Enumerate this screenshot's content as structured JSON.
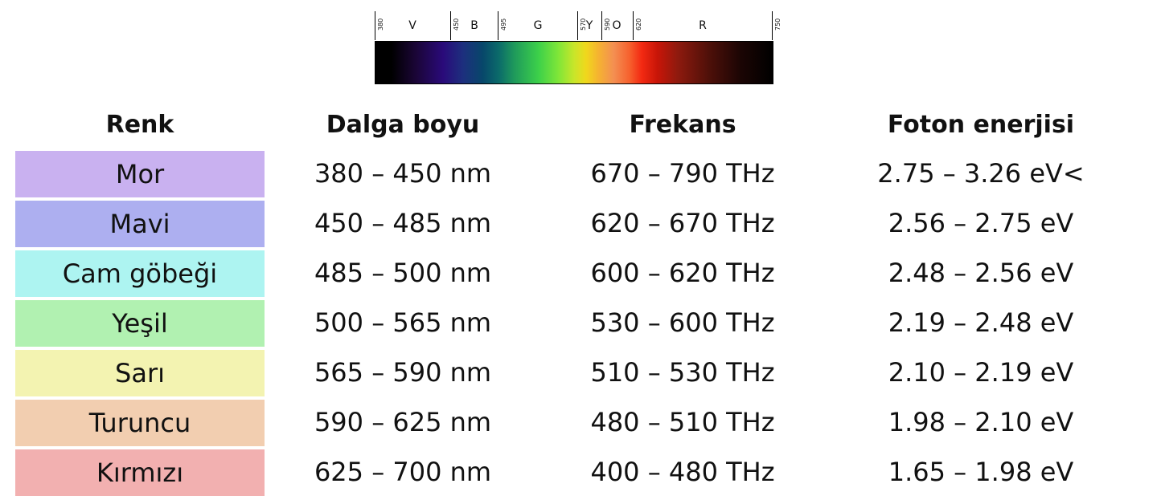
{
  "spectrum": {
    "ticks": [
      {
        "value": "380",
        "pos": 0.0
      },
      {
        "value": "450",
        "pos": 0.19
      },
      {
        "value": "495",
        "pos": 0.31
      },
      {
        "value": "570",
        "pos": 0.51
      },
      {
        "value": "590",
        "pos": 0.57
      },
      {
        "value": "620",
        "pos": 0.65
      },
      {
        "value": "750",
        "pos": 1.0
      }
    ],
    "bands": [
      {
        "label": "V",
        "pos": 0.095
      },
      {
        "label": "B",
        "pos": 0.25
      },
      {
        "label": "G",
        "pos": 0.41
      },
      {
        "label": "Y",
        "pos": 0.54
      },
      {
        "label": "O",
        "pos": 0.61
      },
      {
        "label": "R",
        "pos": 0.825
      }
    ]
  },
  "table": {
    "headers": [
      "Renk",
      "Dalga boyu",
      "Frekans",
      "Foton enerjisi"
    ],
    "rows": [
      {
        "color": "Mor",
        "wavelength": "380 – 450 nm",
        "frequency": "670 – 790 THz",
        "energy": "2.75 – 3.26 eV<",
        "swatch": "#c9b1f0"
      },
      {
        "color": "Mavi",
        "wavelength": "450 – 485 nm",
        "frequency": "620 – 670 THz",
        "energy": "2.56 – 2.75 eV",
        "swatch": "#adaff0"
      },
      {
        "color": "Cam göbeği",
        "wavelength": "485 – 500 nm",
        "frequency": "600 – 620 THz",
        "energy": "2.48 – 2.56 eV",
        "swatch": "#adf4f1"
      },
      {
        "color": "Yeşil",
        "wavelength": "500 – 565 nm",
        "frequency": "530 – 600 THz",
        "energy": "2.19 – 2.48 eV",
        "swatch": "#b1f1b1"
      },
      {
        "color": "Sarı",
        "wavelength": "565 – 590 nm",
        "frequency": "510 – 530 THz",
        "energy": "2.10 – 2.19 eV",
        "swatch": "#f3f3b1"
      },
      {
        "color": "Turuncu",
        "wavelength": "590 – 625 nm",
        "frequency": "480 – 510 THz",
        "energy": "1.98 – 2.10 eV",
        "swatch": "#f2ceb0"
      },
      {
        "color": "Kırmızı",
        "wavelength": "625 – 700 nm",
        "frequency": "400 – 480 THz",
        "energy": "1.65 – 1.98 eV",
        "swatch": "#f2b0b0"
      }
    ]
  }
}
